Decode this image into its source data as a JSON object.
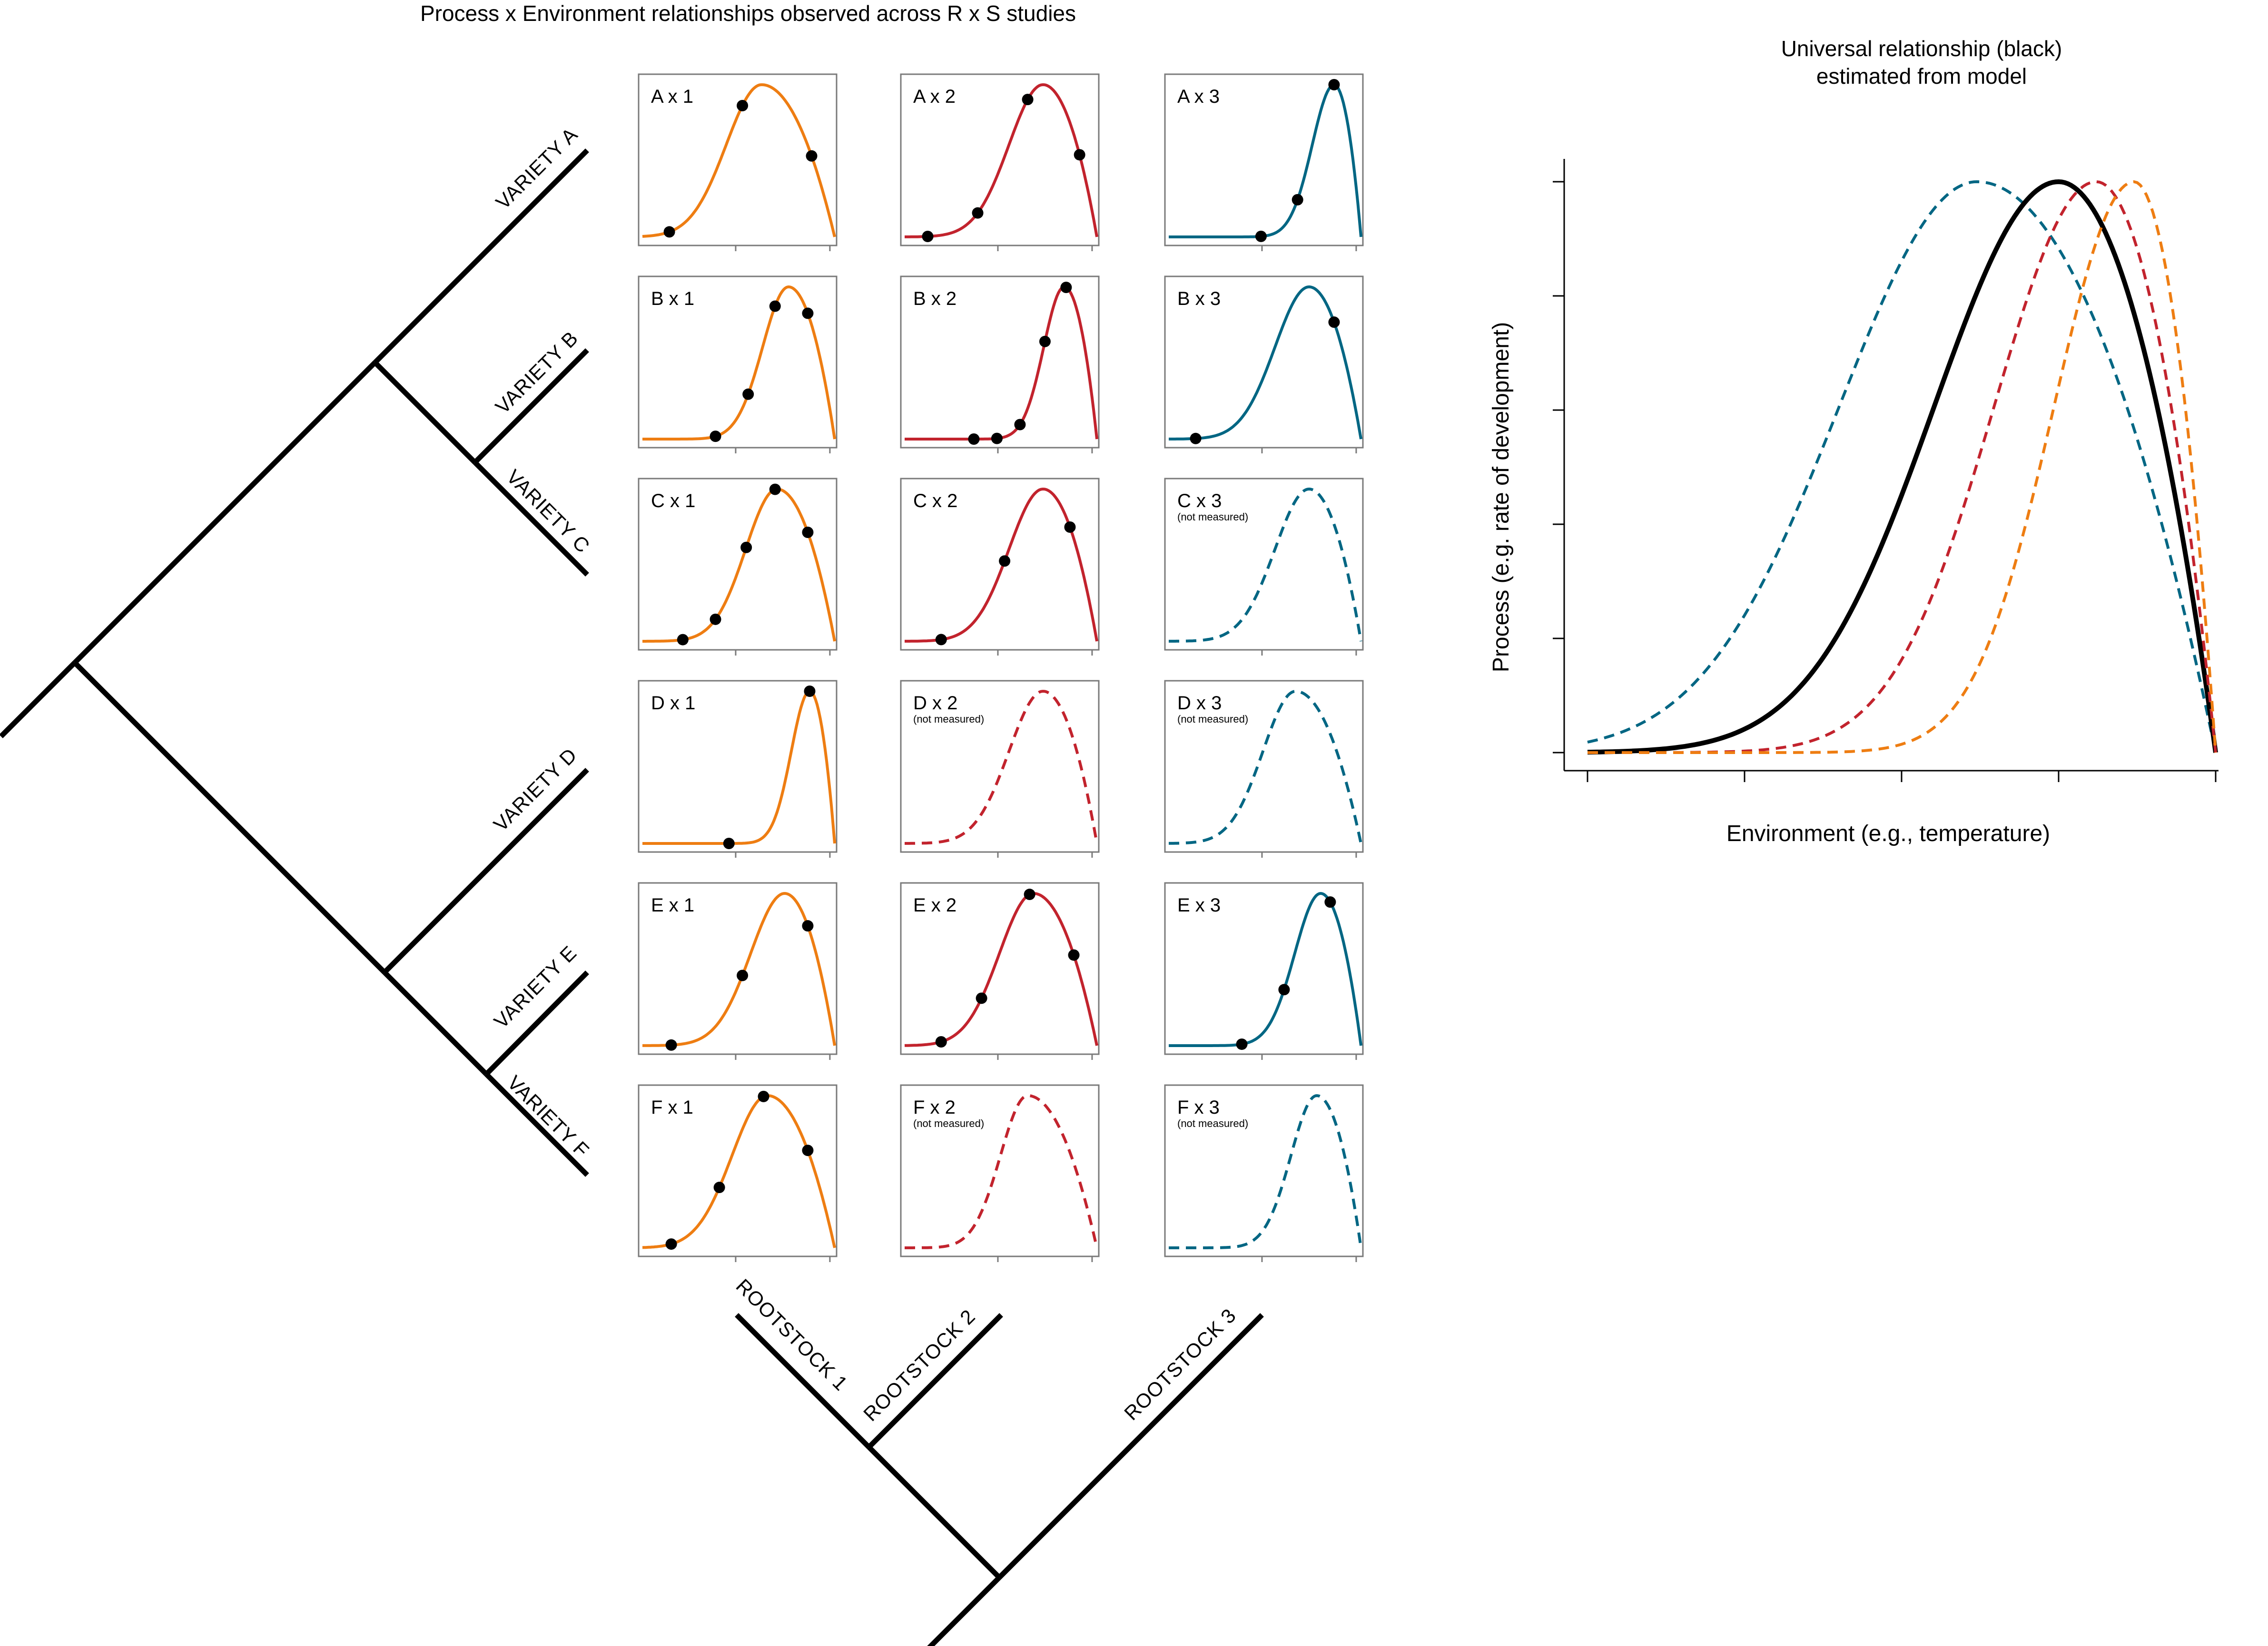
{
  "figure": {
    "main_title": "Process x Environment relationships observed across R x S studies",
    "right_title_line1": "Universal relationship (black)",
    "right_title_line2": "estimated from model",
    "right_xlabel": "Environment (e.g., temperature)",
    "right_ylabel": "Process (e.g. rate of development)"
  },
  "varieties": [
    {
      "id": "A",
      "label": "VARIETY A"
    },
    {
      "id": "B",
      "label": "VARIETY B"
    },
    {
      "id": "C",
      "label": "VARIETY C"
    },
    {
      "id": "D",
      "label": "VARIETY D"
    },
    {
      "id": "E",
      "label": "VARIETY E"
    },
    {
      "id": "F",
      "label": "VARIETY F"
    }
  ],
  "rootstocks": [
    {
      "id": "1",
      "label": "ROOTSTOCK 1"
    },
    {
      "id": "2",
      "label": "ROOTSTOCK 2"
    },
    {
      "id": "3",
      "label": "ROOTSTOCK 3"
    }
  ],
  "colors": {
    "rootstock1": "#ee7d12",
    "rootstock2": "#c2232d",
    "rootstock3": "#006683",
    "universal": "#000000",
    "dot": "#000000"
  },
  "chart_data": [
    {
      "type": "line",
      "description_panels": "grid of 6 varieties x 3 rootstocks; solid = measured, dashed = not measured",
      "panels": [
        {
          "label": "A x 1",
          "variety": "A",
          "rootstock": 1,
          "measured": true,
          "note": "",
          "peak": 0.62,
          "width": 0.52,
          "points": [
            0.14,
            0.52,
            0.88
          ]
        },
        {
          "label": "A x 2",
          "variety": "A",
          "rootstock": 2,
          "measured": true,
          "note": "",
          "peak": 0.72,
          "width": 0.5,
          "points": [
            0.12,
            0.38,
            0.64,
            0.91
          ]
        },
        {
          "label": "A x 3",
          "variety": "A",
          "rootstock": 3,
          "measured": true,
          "note": "",
          "peak": 0.86,
          "width": 0.32,
          "points": [
            0.48,
            0.67,
            0.86
          ]
        },
        {
          "label": "B x 1",
          "variety": "B",
          "rootstock": 1,
          "measured": true,
          "note": "",
          "peak": 0.76,
          "width": 0.38,
          "points": [
            0.38,
            0.55,
            0.69,
            0.86
          ]
        },
        {
          "label": "B x 2",
          "variety": "B",
          "rootstock": 2,
          "measured": true,
          "note": "",
          "peak": 0.83,
          "width": 0.3,
          "points": [
            0.36,
            0.48,
            0.6,
            0.73,
            0.84
          ]
        },
        {
          "label": "B x 3",
          "variety": "B",
          "rootstock": 3,
          "measured": true,
          "note": "",
          "peak": 0.73,
          "width": 0.5,
          "points": [
            0.14,
            0.86
          ]
        },
        {
          "label": "C x 1",
          "variety": "C",
          "rootstock": 1,
          "measured": true,
          "note": "",
          "peak": 0.7,
          "width": 0.46,
          "points": [
            0.21,
            0.38,
            0.54,
            0.69,
            0.86
          ]
        },
        {
          "label": "C x 2",
          "variety": "C",
          "rootstock": 2,
          "measured": true,
          "note": "",
          "peak": 0.72,
          "width": 0.5,
          "points": [
            0.19,
            0.52,
            0.86
          ]
        },
        {
          "label": "C x 3",
          "variety": "C",
          "rootstock": 3,
          "measured": false,
          "note": "(not measured)",
          "peak": 0.73,
          "width": 0.5,
          "points": []
        },
        {
          "label": "D x 1",
          "variety": "D",
          "rootstock": 1,
          "measured": true,
          "note": "",
          "peak": 0.87,
          "width": 0.27,
          "points": [
            0.45,
            0.87
          ]
        },
        {
          "label": "D x 2",
          "variety": "D",
          "rootstock": 2,
          "measured": false,
          "note": "(not measured)",
          "peak": 0.72,
          "width": 0.5,
          "points": []
        },
        {
          "label": "D x 3",
          "variety": "D",
          "rootstock": 3,
          "measured": false,
          "note": "(not measured)",
          "peak": 0.66,
          "width": 0.48,
          "points": []
        },
        {
          "label": "E x 1",
          "variety": "E",
          "rootstock": 1,
          "measured": true,
          "note": "",
          "peak": 0.74,
          "width": 0.5,
          "points": [
            0.15,
            0.52,
            0.86
          ]
        },
        {
          "label": "E x 2",
          "variety": "E",
          "rootstock": 2,
          "measured": true,
          "note": "",
          "peak": 0.67,
          "width": 0.5,
          "points": [
            0.19,
            0.4,
            0.65,
            0.88
          ]
        },
        {
          "label": "E x 3",
          "variety": "E",
          "rootstock": 3,
          "measured": true,
          "note": "",
          "peak": 0.79,
          "width": 0.38,
          "points": [
            0.38,
            0.6,
            0.84
          ]
        },
        {
          "label": "F x 1",
          "variety": "F",
          "rootstock": 1,
          "measured": true,
          "note": "",
          "peak": 0.65,
          "width": 0.52,
          "points": [
            0.15,
            0.4,
            0.63,
            0.86
          ]
        },
        {
          "label": "F x 2",
          "variety": "F",
          "rootstock": 2,
          "measured": false,
          "note": "(not measured)",
          "peak": 0.64,
          "width": 0.4,
          "points": []
        },
        {
          "label": "F x 3",
          "variety": "F",
          "rootstock": 3,
          "measured": false,
          "note": "(not measured)",
          "peak": 0.77,
          "width": 0.38,
          "points": []
        }
      ]
    },
    {
      "type": "line",
      "title": "Universal relationship (black) estimated from model",
      "xlabel": "Environment (e.g., temperature)",
      "ylabel": "Process (e.g. rate of development)",
      "xlim": [
        0,
        1
      ],
      "ylim": [
        0,
        1
      ],
      "series": [
        {
          "color": "#006683",
          "dashed": true,
          "peak": 0.62,
          "width": 0.62
        },
        {
          "color": "#000000",
          "dashed": false,
          "peak": 0.75,
          "width": 0.56
        },
        {
          "color": "#c2232d",
          "dashed": true,
          "peak": 0.81,
          "width": 0.46
        },
        {
          "color": "#ee7d12",
          "dashed": true,
          "peak": 0.87,
          "width": 0.36
        }
      ]
    }
  ]
}
